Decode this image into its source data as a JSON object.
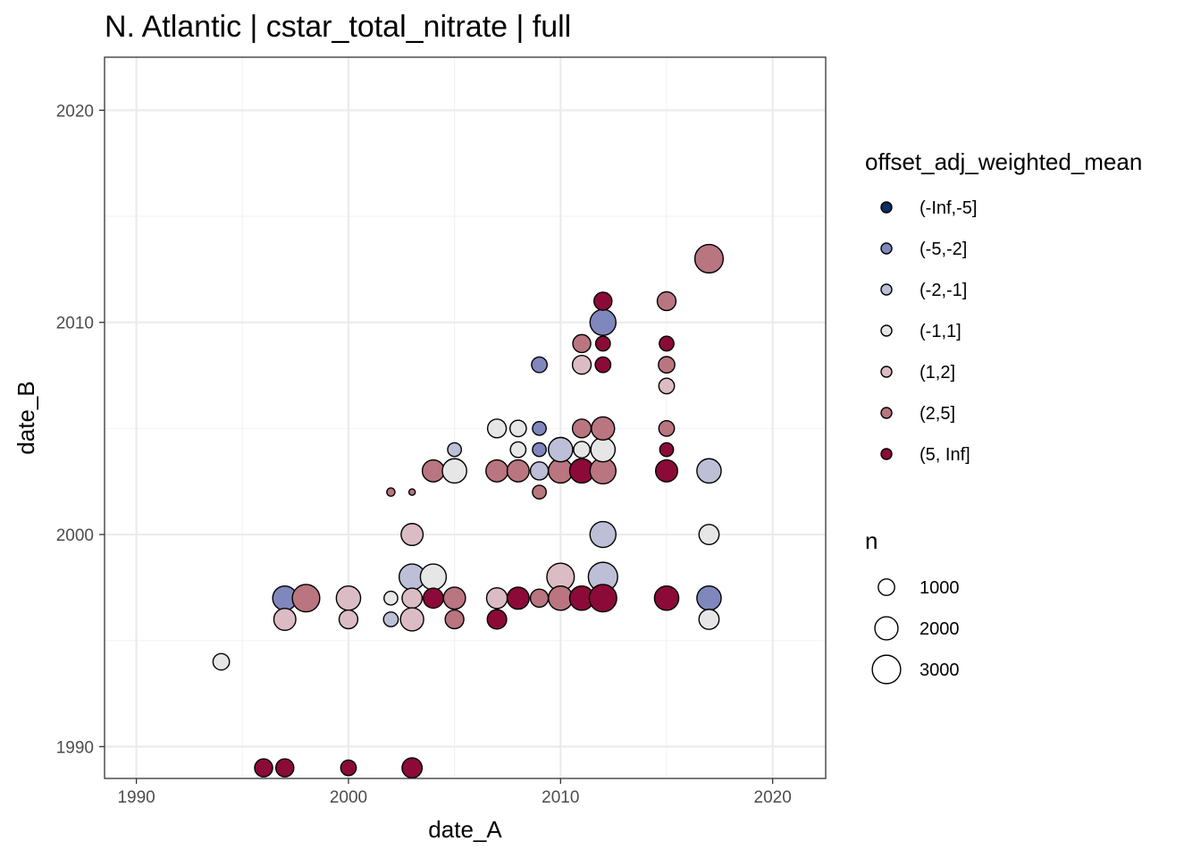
{
  "chart_data": {
    "type": "scatter",
    "title": "N. Atlantic | cstar_total_nitrate | full",
    "xlabel": "date_A",
    "ylabel": "date_B",
    "xlim": [
      1988.5,
      2022.5
    ],
    "ylim": [
      1988.5,
      2022.5
    ],
    "x_ticks": [
      1990,
      2000,
      2010,
      2020
    ],
    "y_ticks": [
      1990,
      2000,
      2010,
      2020
    ],
    "grid": true,
    "legend_position": "right",
    "color_legend": {
      "title": "offset_adj_weighted_mean",
      "levels": [
        {
          "label": "(-Inf,-5]",
          "color": "#053061"
        },
        {
          "label": "(-5,-2]",
          "color": "#7f87bd"
        },
        {
          "label": "(-2,-1]",
          "color": "#bcbfd6"
        },
        {
          "label": "(-1,1]",
          "color": "#e6e6e6"
        },
        {
          "label": "(1,2]",
          "color": "#dbbcc4"
        },
        {
          "label": "(2,5]",
          "color": "#b97580"
        },
        {
          "label": "(5, Inf]",
          "color": "#8b0a37"
        }
      ]
    },
    "size_legend": {
      "title": "n",
      "values": [
        1000,
        2000,
        3000
      ]
    },
    "points": [
      {
        "x": 1994,
        "y": 1994,
        "cat": "(-1,1]",
        "n": 1000
      },
      {
        "x": 1996,
        "y": 1989,
        "cat": "(5, Inf]",
        "n": 1200
      },
      {
        "x": 1997,
        "y": 1989,
        "cat": "(5, Inf]",
        "n": 1200
      },
      {
        "x": 2000,
        "y": 1989,
        "cat": "(5, Inf]",
        "n": 900
      },
      {
        "x": 2003,
        "y": 1989,
        "cat": "(5, Inf]",
        "n": 1500
      },
      {
        "x": 1997,
        "y": 1997,
        "cat": "(-5,-2]",
        "n": 2200
      },
      {
        "x": 1998,
        "y": 1997,
        "cat": "(2,5]",
        "n": 2800
      },
      {
        "x": 1997,
        "y": 1996,
        "cat": "(1,2]",
        "n": 1800
      },
      {
        "x": 2000,
        "y": 1997,
        "cat": "(1,2]",
        "n": 2200
      },
      {
        "x": 2000,
        "y": 1996,
        "cat": "(1,2]",
        "n": 1300
      },
      {
        "x": 2002,
        "y": 1997,
        "cat": "(-1,1]",
        "n": 700
      },
      {
        "x": 2002,
        "y": 1996,
        "cat": "(-2,-1]",
        "n": 800
      },
      {
        "x": 2003,
        "y": 1998,
        "cat": "(-2,-1]",
        "n": 2500
      },
      {
        "x": 2003,
        "y": 1997,
        "cat": "(1,2]",
        "n": 1500
      },
      {
        "x": 2003,
        "y": 1996,
        "cat": "(1,2]",
        "n": 2000
      },
      {
        "x": 2004,
        "y": 1998,
        "cat": "(-1,1]",
        "n": 2500
      },
      {
        "x": 2004,
        "y": 1997,
        "cat": "(5, Inf]",
        "n": 1500
      },
      {
        "x": 2005,
        "y": 1997,
        "cat": "(2,5]",
        "n": 1800
      },
      {
        "x": 2005,
        "y": 1996,
        "cat": "(2,5]",
        "n": 1300
      },
      {
        "x": 2007,
        "y": 1997,
        "cat": "(1,2]",
        "n": 1600
      },
      {
        "x": 2007,
        "y": 1996,
        "cat": "(5, Inf]",
        "n": 1400
      },
      {
        "x": 2008,
        "y": 1997,
        "cat": "(5, Inf]",
        "n": 1800
      },
      {
        "x": 2009,
        "y": 1997,
        "cat": "(2,5]",
        "n": 1200
      },
      {
        "x": 2010,
        "y": 1998,
        "cat": "(1,2]",
        "n": 2800
      },
      {
        "x": 2010,
        "y": 1997,
        "cat": "(2,5]",
        "n": 2200
      },
      {
        "x": 2011,
        "y": 1997,
        "cat": "(5, Inf]",
        "n": 2200
      },
      {
        "x": 2012,
        "y": 1998,
        "cat": "(-2,-1]",
        "n": 3200
      },
      {
        "x": 2012,
        "y": 1997,
        "cat": "(5, Inf]",
        "n": 2800
      },
      {
        "x": 2015,
        "y": 1997,
        "cat": "(5, Inf]",
        "n": 2200
      },
      {
        "x": 2017,
        "y": 1997,
        "cat": "(-5,-2]",
        "n": 2200
      },
      {
        "x": 2017,
        "y": 1996,
        "cat": "(-1,1]",
        "n": 1500
      },
      {
        "x": 2003,
        "y": 2000,
        "cat": "(1,2]",
        "n": 1800
      },
      {
        "x": 2012,
        "y": 2000,
        "cat": "(-2,-1]",
        "n": 2500
      },
      {
        "x": 2017,
        "y": 2000,
        "cat": "(-1,1]",
        "n": 1500
      },
      {
        "x": 2002,
        "y": 2002,
        "cat": "(2,5]",
        "n": 250
      },
      {
        "x": 2003,
        "y": 2002,
        "cat": "(2,5]",
        "n": 150
      },
      {
        "x": 2009,
        "y": 2002,
        "cat": "(2,5]",
        "n": 700
      },
      {
        "x": 2004,
        "y": 2003,
        "cat": "(2,5]",
        "n": 1800
      },
      {
        "x": 2005,
        "y": 2003,
        "cat": "(-1,1]",
        "n": 2200
      },
      {
        "x": 2007,
        "y": 2003,
        "cat": "(2,5]",
        "n": 1800
      },
      {
        "x": 2008,
        "y": 2003,
        "cat": "(2,5]",
        "n": 1800
      },
      {
        "x": 2009,
        "y": 2003,
        "cat": "(-2,-1]",
        "n": 1200
      },
      {
        "x": 2010,
        "y": 2003,
        "cat": "(2,5]",
        "n": 2200
      },
      {
        "x": 2011,
        "y": 2003,
        "cat": "(5, Inf]",
        "n": 2200
      },
      {
        "x": 2012,
        "y": 2003,
        "cat": "(2,5]",
        "n": 2500
      },
      {
        "x": 2015,
        "y": 2003,
        "cat": "(5, Inf]",
        "n": 1800
      },
      {
        "x": 2017,
        "y": 2003,
        "cat": "(-2,-1]",
        "n": 2200
      },
      {
        "x": 2005,
        "y": 2004,
        "cat": "(-2,-1]",
        "n": 700
      },
      {
        "x": 2008,
        "y": 2004,
        "cat": "(-1,1]",
        "n": 900
      },
      {
        "x": 2009,
        "y": 2004,
        "cat": "(-5,-2]",
        "n": 700
      },
      {
        "x": 2010,
        "y": 2004,
        "cat": "(-2,-1]",
        "n": 2200
      },
      {
        "x": 2011,
        "y": 2004,
        "cat": "(-1,1]",
        "n": 1000
      },
      {
        "x": 2012,
        "y": 2004,
        "cat": "(-1,1]",
        "n": 2200
      },
      {
        "x": 2015,
        "y": 2004,
        "cat": "(5, Inf]",
        "n": 700
      },
      {
        "x": 2007,
        "y": 2005,
        "cat": "(-1,1]",
        "n": 1300
      },
      {
        "x": 2008,
        "y": 2005,
        "cat": "(-1,1]",
        "n": 1000
      },
      {
        "x": 2009,
        "y": 2005,
        "cat": "(-5,-2]",
        "n": 700
      },
      {
        "x": 2011,
        "y": 2005,
        "cat": "(2,5]",
        "n": 1300
      },
      {
        "x": 2012,
        "y": 2005,
        "cat": "(2,5]",
        "n": 2000
      },
      {
        "x": 2015,
        "y": 2005,
        "cat": "(2,5]",
        "n": 900
      },
      {
        "x": 2015,
        "y": 2007,
        "cat": "(1,2]",
        "n": 900
      },
      {
        "x": 2009,
        "y": 2008,
        "cat": "(-5,-2]",
        "n": 900
      },
      {
        "x": 2011,
        "y": 2008,
        "cat": "(1,2]",
        "n": 1300
      },
      {
        "x": 2012,
        "y": 2008,
        "cat": "(5, Inf]",
        "n": 900
      },
      {
        "x": 2015,
        "y": 2008,
        "cat": "(2,5]",
        "n": 1000
      },
      {
        "x": 2011,
        "y": 2009,
        "cat": "(2,5]",
        "n": 1200
      },
      {
        "x": 2012,
        "y": 2009,
        "cat": "(5, Inf]",
        "n": 800
      },
      {
        "x": 2015,
        "y": 2009,
        "cat": "(5, Inf]",
        "n": 800
      },
      {
        "x": 2012,
        "y": 2010,
        "cat": "(-5,-2]",
        "n": 2500
      },
      {
        "x": 2012,
        "y": 2011,
        "cat": "(5, Inf]",
        "n": 1200
      },
      {
        "x": 2015,
        "y": 2011,
        "cat": "(2,5]",
        "n": 1300
      },
      {
        "x": 2017,
        "y": 2013,
        "cat": "(2,5]",
        "n": 3000
      }
    ]
  }
}
